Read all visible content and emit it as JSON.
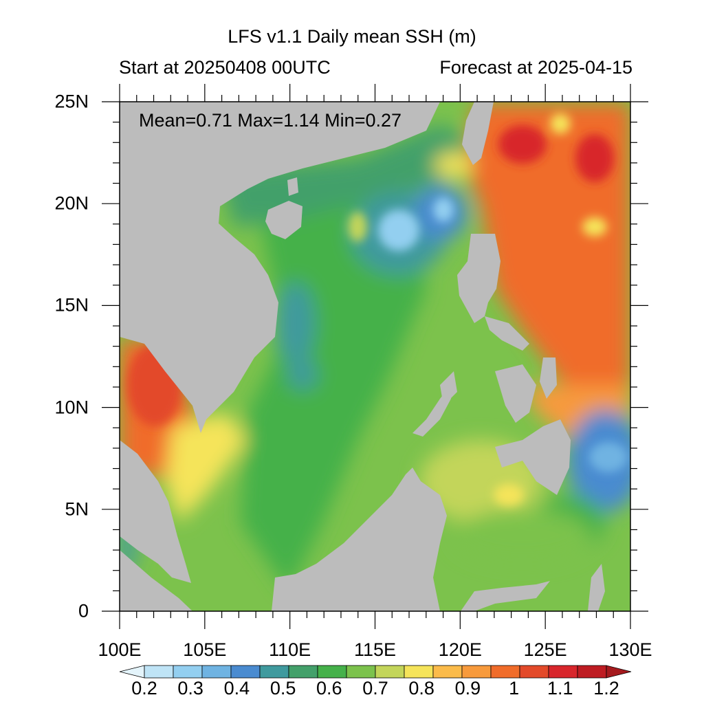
{
  "title": "LFS v1.1 Daily mean SSH (m)",
  "subtitle_left": "Start at 20250408 00UTC",
  "subtitle_right": "Forecast at 2025-04-15",
  "stats": "Mean=0.71  Max=1.14  Min=0.27",
  "lat_labels": [
    "25N",
    "20N",
    "15N",
    "10N",
    "5N",
    "0"
  ],
  "lon_labels": [
    "100E",
    "105E",
    "110E",
    "115E",
    "120E",
    "125E",
    "130E"
  ],
  "colorbar": {
    "labels": [
      "0.2",
      "0.3",
      "0.4",
      "0.5",
      "0.6",
      "0.7",
      "0.8",
      "0.9",
      "1",
      "1.1",
      "1.2"
    ],
    "colors": [
      "#e4f4fb",
      "#bfe4f6",
      "#93cff0",
      "#6fb3e2",
      "#4a8bd0",
      "#3f9a9e",
      "#43a06a",
      "#45b14a",
      "#7cc24c",
      "#c3d55a",
      "#f5e45a",
      "#fbbb4a",
      "#f79a3c",
      "#f06c2a",
      "#e34a2a",
      "#d8262c",
      "#be1c22",
      "#a51a1e"
    ]
  },
  "map": {
    "land_color": "#bcbcbc",
    "lon_range": [
      100,
      130
    ],
    "lat_range": [
      0,
      25
    ]
  }
}
